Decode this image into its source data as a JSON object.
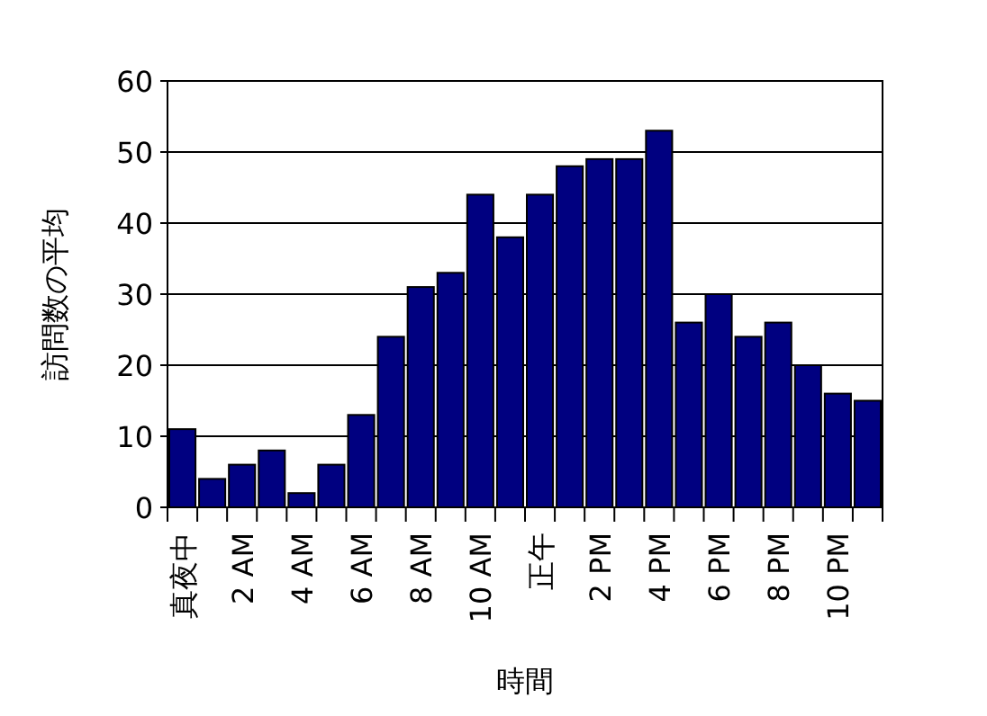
{
  "chart_data": {
    "type": "bar",
    "xlabel": "時間",
    "ylabel": "訪問数の平均",
    "categories": [
      "真夜中",
      null,
      "2 AM",
      null,
      "4 AM",
      null,
      "6 AM",
      null,
      "8 AM",
      null,
      "10 AM",
      null,
      "正午",
      null,
      "2 PM",
      null,
      "4 PM",
      null,
      "6 PM",
      null,
      "8 PM",
      null,
      "10 PM",
      null
    ],
    "values": [
      11,
      4,
      6,
      8,
      2,
      6,
      13,
      24,
      31,
      33,
      44,
      38,
      44,
      48,
      49,
      49,
      53,
      26,
      30,
      24,
      26,
      20,
      16,
      15
    ],
    "color": "#000080",
    "ylim": [
      0,
      60
    ],
    "yticks": [
      0,
      10,
      20,
      30,
      40,
      50,
      60
    ],
    "grid": "y"
  }
}
